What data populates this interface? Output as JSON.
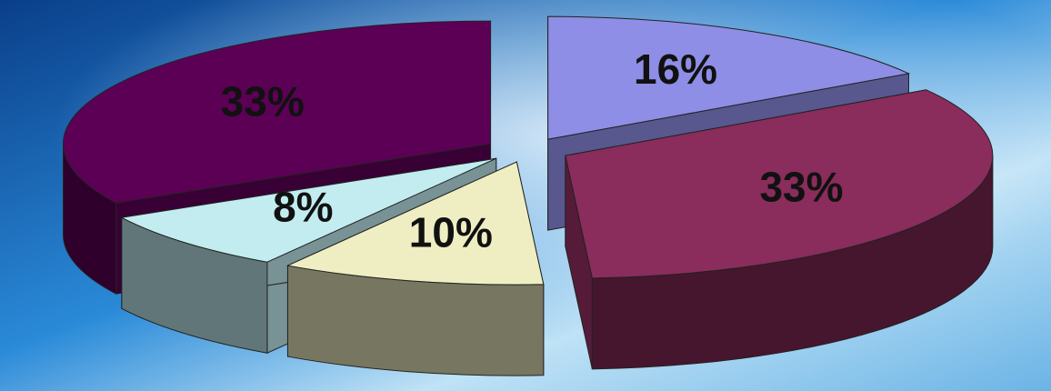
{
  "chart_data": {
    "type": "pie",
    "values": [
      16,
      33,
      10,
      8,
      33
    ],
    "value_labels": [
      "16%",
      "33%",
      "10%",
      "8%",
      "33%"
    ],
    "colors": [
      "#8e8ee6",
      "#8a2c5c",
      "#eeeec2",
      "#c2ecf0",
      "#5c0056"
    ]
  }
}
